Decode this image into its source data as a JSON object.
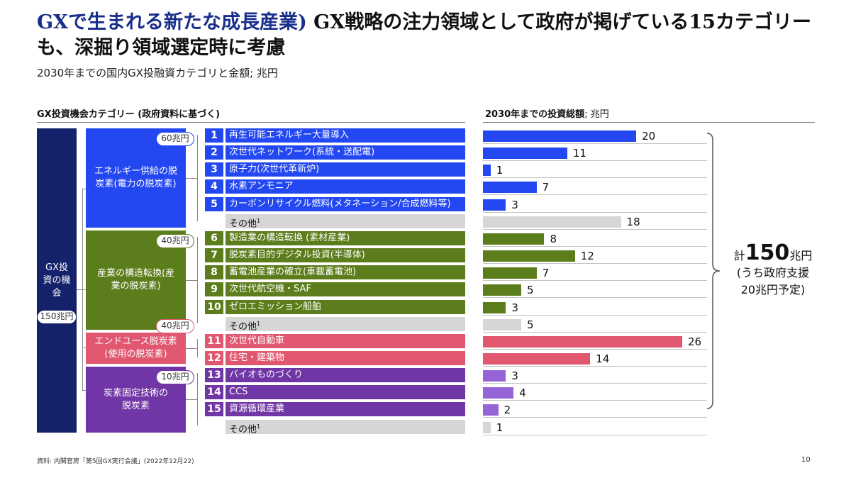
{
  "title": {
    "prefix": "GXで生まれる新たな成長産業)",
    "main": " GX戦略の注力領域として政府が掲げている15カテゴリーも、深掘り領域選定時に考慮"
  },
  "subtitle": "2030年までの国内GX投融資カテゴリと金額; 兆円",
  "left_header": "GX投資機会カテゴリー (政府資料に基づく)",
  "right_header": {
    "main": "2030年までの投資総額",
    "unit": "; 兆円"
  },
  "root": {
    "label": "GX投資の機会",
    "amount": "150兆円"
  },
  "colors": {
    "navy": "#14216b",
    "blue": "#2348f2",
    "green": "#5c7d1b",
    "pink": "#e15770",
    "purple": "#7136a5",
    "lightpurple": "#9564d6",
    "gray": "#d6d6d6"
  },
  "groups": [
    {
      "label": "エネルギー供給の脱炭素(電力の脱炭素)",
      "amount": "60兆円",
      "color": "#2348f2"
    },
    {
      "label": "産業の構造転換(産業の脱炭素)",
      "amount": "40兆円",
      "color": "#5c7d1b"
    },
    {
      "label": "エンドユース脱炭素(使用の脱炭素)",
      "amount": "40兆円",
      "color": "#e15770"
    },
    {
      "label": "炭素固定技術の脱炭素",
      "amount": "10兆円",
      "color": "#7136a5"
    }
  ],
  "items": [
    {
      "num": "1",
      "label": "再生可能エネルギー大量導入"
    },
    {
      "num": "2",
      "label": "次世代ネットワーク(系統・送配電)"
    },
    {
      "num": "3",
      "label": "原子力(次世代革新炉)"
    },
    {
      "num": "4",
      "label": "水素アンモニア"
    },
    {
      "num": "5",
      "label": "カーボンリサイクル燃料(メタネーション/合成燃料等)"
    },
    {
      "num": "",
      "label": "その他",
      "sup": "1"
    },
    {
      "num": "6",
      "label": "製造業の構造転換 (素材産業)"
    },
    {
      "num": "7",
      "label": "脱炭素目的デジタル投資(半導体)"
    },
    {
      "num": "8",
      "label": "蓄電池産業の確立(車載蓄電池)"
    },
    {
      "num": "9",
      "label": "次世代航空機・SAF"
    },
    {
      "num": "10",
      "label": "ゼロエミッション船舶"
    },
    {
      "num": "",
      "label": "その他",
      "sup": "1"
    },
    {
      "num": "11",
      "label": "次世代自動車"
    },
    {
      "num": "12",
      "label": "住宅・建築物"
    },
    {
      "num": "13",
      "label": "バイオものづくり"
    },
    {
      "num": "14",
      "label": "CCS"
    },
    {
      "num": "15",
      "label": "資源循環産業"
    },
    {
      "num": "",
      "label": "その他",
      "sup": "1"
    }
  ],
  "total": {
    "prefix": "計",
    "value": "150",
    "unit": "兆円",
    "line2": "(うち政府支援",
    "line3": "20兆円予定)"
  },
  "footer": "資料: 内閣官房「第5回GX実行会議」(2022年12月22)",
  "page_number": "10",
  "chart_data": {
    "type": "bar",
    "orientation": "horizontal",
    "title": "2030年までの投資総額; 兆円",
    "categories": [
      "再生可能エネルギー大量導入",
      "次世代ネットワーク(系統・送配電)",
      "原子力(次世代革新炉)",
      "水素アンモニア",
      "カーボンリサイクル燃料(メタネーション/合成燃料等)",
      "その他",
      "製造業の構造転換 (素材産業)",
      "脱炭素目的デジタル投資(半導体)",
      "蓄電池産業の確立(車載蓄電池)",
      "次世代航空機・SAF",
      "ゼロエミッション船舶",
      "その他",
      "次世代自動車",
      "住宅・建築物",
      "バイオものづくり",
      "CCS",
      "資源循環産業",
      "その他"
    ],
    "values": [
      20,
      11,
      1,
      7,
      3,
      18,
      8,
      12,
      7,
      5,
      3,
      5,
      26,
      14,
      3,
      4,
      2,
      1
    ],
    "bar_colors": [
      "#2348f2",
      "#2348f2",
      "#2348f2",
      "#2348f2",
      "#2348f2",
      "#d6d6d6",
      "#5c7d1b",
      "#5c7d1b",
      "#5c7d1b",
      "#5c7d1b",
      "#5c7d1b",
      "#d6d6d6",
      "#e15770",
      "#e15770",
      "#9564d6",
      "#9564d6",
      "#9564d6",
      "#d6d6d6"
    ],
    "xlim": [
      0,
      26
    ],
    "grid": false,
    "legend": "none"
  }
}
